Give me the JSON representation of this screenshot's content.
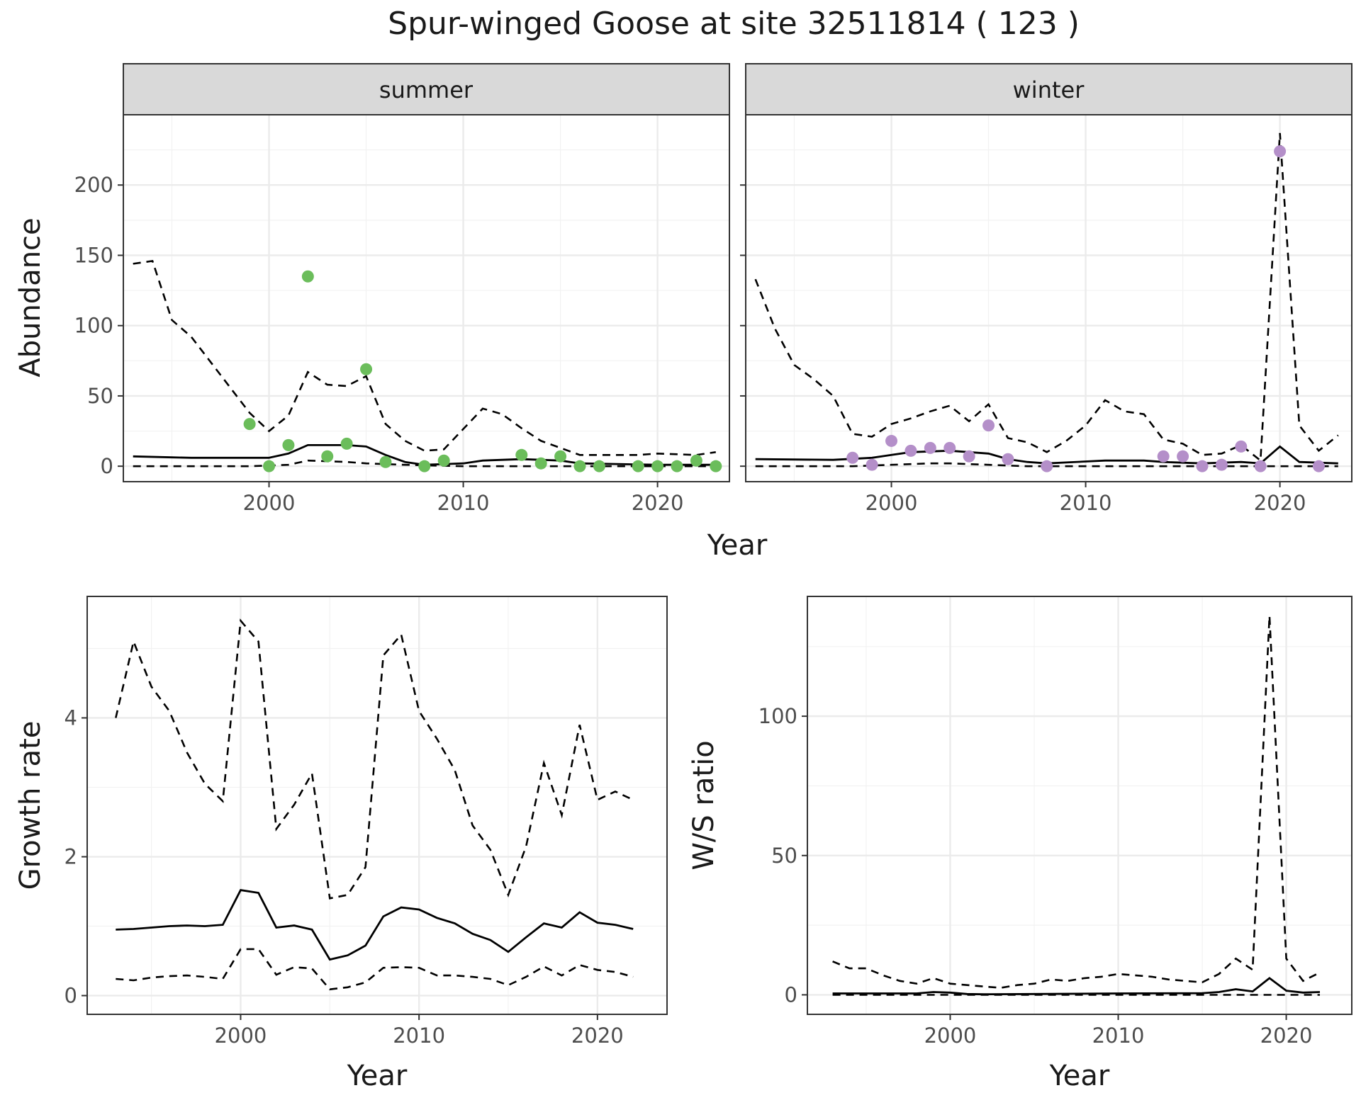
{
  "title": "Spur-winged Goose at site 32511814 ( 123 )",
  "colors": {
    "summer_points": "#6bbd5b",
    "winter_points": "#b48fc9",
    "lines": "#000000",
    "strip_fill": "#d9d9d9",
    "grid": "#ebebeb"
  },
  "chart_data": [
    {
      "type": "line",
      "id": "abundance-summer",
      "strip": "summer",
      "ylabel": "Abundance",
      "xlim": [
        1992.5,
        2023.7
      ],
      "ylim": [
        -11,
        250
      ],
      "xticks": [
        2000,
        2010,
        2020
      ],
      "yticks": [
        0,
        50,
        100,
        150,
        200
      ],
      "points_color": "#6bbd5b",
      "points": [
        [
          1999,
          30
        ],
        [
          2000,
          0
        ],
        [
          2001,
          15
        ],
        [
          2002,
          135
        ],
        [
          2003,
          7
        ],
        [
          2004,
          16
        ],
        [
          2005,
          69
        ],
        [
          2006,
          3
        ],
        [
          2008,
          0
        ],
        [
          2009,
          4
        ],
        [
          2013,
          8
        ],
        [
          2014,
          2
        ],
        [
          2015,
          7
        ],
        [
          2016,
          0
        ],
        [
          2017,
          0
        ],
        [
          2019,
          0
        ],
        [
          2020,
          0
        ],
        [
          2021,
          0
        ],
        [
          2022,
          4
        ],
        [
          2023,
          0
        ]
      ],
      "mean": [
        [
          1993,
          7
        ],
        [
          1995,
          6.3
        ],
        [
          1996,
          6
        ],
        [
          2000,
          6
        ],
        [
          2001,
          9
        ],
        [
          2002,
          15
        ],
        [
          2004,
          15
        ],
        [
          2005,
          14
        ],
        [
          2006,
          8
        ],
        [
          2007,
          3
        ],
        [
          2008,
          1
        ],
        [
          2010,
          2
        ],
        [
          2011,
          4
        ],
        [
          2013,
          5
        ],
        [
          2015,
          4
        ],
        [
          2016,
          2
        ],
        [
          2020,
          1
        ],
        [
          2023,
          1
        ]
      ],
      "upper": [
        [
          1993,
          144
        ],
        [
          1994,
          146
        ],
        [
          1995,
          104
        ],
        [
          1996,
          92
        ],
        [
          1999,
          38
        ],
        [
          2000,
          25
        ],
        [
          2001,
          36
        ],
        [
          2002,
          67
        ],
        [
          2003,
          58
        ],
        [
          2004,
          57
        ],
        [
          2005,
          64
        ],
        [
          2006,
          30
        ],
        [
          2007,
          18
        ],
        [
          2008,
          11
        ],
        [
          2009,
          12
        ],
        [
          2011,
          41
        ],
        [
          2012,
          37
        ],
        [
          2013,
          27
        ],
        [
          2014,
          18
        ],
        [
          2016,
          8
        ],
        [
          2019,
          8
        ],
        [
          2020,
          9
        ],
        [
          2022,
          8
        ],
        [
          2023,
          10
        ]
      ],
      "lower": [
        [
          1993,
          0
        ],
        [
          1999,
          0
        ],
        [
          2001,
          1
        ],
        [
          2002,
          4
        ],
        [
          2004,
          3
        ],
        [
          2005,
          2
        ],
        [
          2007,
          1
        ],
        [
          2010,
          0
        ],
        [
          2023,
          0
        ]
      ]
    },
    {
      "type": "line",
      "id": "abundance-winter",
      "strip": "winter",
      "xlim": [
        1992.5,
        2023.7
      ],
      "ylim": [
        -11,
        250
      ],
      "xticks": [
        2000,
        2010,
        2020
      ],
      "yticks": [
        0,
        50,
        100,
        150,
        200
      ],
      "points_color": "#b48fc9",
      "points": [
        [
          1998,
          6
        ],
        [
          1999,
          1
        ],
        [
          2000,
          18
        ],
        [
          2001,
          11
        ],
        [
          2002,
          13
        ],
        [
          2003,
          13
        ],
        [
          2004,
          7
        ],
        [
          2005,
          29
        ],
        [
          2006,
          5
        ],
        [
          2008,
          0
        ],
        [
          2014,
          7
        ],
        [
          2015,
          7
        ],
        [
          2016,
          0
        ],
        [
          2017,
          1
        ],
        [
          2018,
          14
        ],
        [
          2019,
          0
        ],
        [
          2020,
          224
        ],
        [
          2022,
          0
        ]
      ],
      "mean": [
        [
          1993,
          5
        ],
        [
          1997,
          4.5
        ],
        [
          1999,
          6
        ],
        [
          2000,
          8
        ],
        [
          2001,
          10
        ],
        [
          2003,
          11
        ],
        [
          2005,
          9
        ],
        [
          2006,
          5
        ],
        [
          2007,
          3
        ],
        [
          2008,
          2
        ],
        [
          2011,
          4
        ],
        [
          2013,
          4
        ],
        [
          2014,
          3
        ],
        [
          2016,
          2
        ],
        [
          2018,
          3
        ],
        [
          2019,
          2
        ],
        [
          2020,
          14
        ],
        [
          2021,
          3
        ],
        [
          2023,
          2
        ]
      ],
      "upper": [
        [
          1993,
          133
        ],
        [
          1994,
          98
        ],
        [
          1995,
          72
        ],
        [
          1996,
          62
        ],
        [
          1997,
          50
        ],
        [
          1998,
          23
        ],
        [
          1999,
          21
        ],
        [
          2000,
          30
        ],
        [
          2001,
          34
        ],
        [
          2002,
          39
        ],
        [
          2003,
          43
        ],
        [
          2004,
          32
        ],
        [
          2005,
          44
        ],
        [
          2006,
          20
        ],
        [
          2007,
          17
        ],
        [
          2008,
          10
        ],
        [
          2009,
          18
        ],
        [
          2010,
          29
        ],
        [
          2011,
          47
        ],
        [
          2012,
          39
        ],
        [
          2013,
          37
        ],
        [
          2014,
          19
        ],
        [
          2015,
          16
        ],
        [
          2016,
          8
        ],
        [
          2017,
          9
        ],
        [
          2018,
          15
        ],
        [
          2019,
          4
        ],
        [
          2020,
          237
        ],
        [
          2021,
          29
        ],
        [
          2022,
          11
        ],
        [
          2023,
          22
        ]
      ],
      "lower": [
        [
          1993,
          0
        ],
        [
          1998,
          0
        ],
        [
          2000,
          1
        ],
        [
          2002,
          2
        ],
        [
          2003,
          2
        ],
        [
          2005,
          1
        ],
        [
          2007,
          0
        ],
        [
          2023,
          0
        ]
      ]
    },
    {
      "type": "line",
      "id": "growth-rate",
      "xlabel": "Year",
      "ylabel": "Growth rate",
      "xlim": [
        1991.4,
        2023.9
      ],
      "ylim": [
        -0.27,
        5.75
      ],
      "xticks": [
        2000,
        2010,
        2020
      ],
      "yticks": [
        0,
        2,
        4
      ],
      "mean": [
        [
          1993,
          0.95
        ],
        [
          1994,
          0.96
        ],
        [
          1995,
          0.98
        ],
        [
          1996,
          1.0
        ],
        [
          1997,
          1.01
        ],
        [
          1998,
          1.0
        ],
        [
          1999,
          1.02
        ],
        [
          2000,
          1.52
        ],
        [
          2001,
          1.48
        ],
        [
          2002,
          0.98
        ],
        [
          2003,
          1.01
        ],
        [
          2004,
          0.95
        ],
        [
          2005,
          0.52
        ],
        [
          2006,
          0.58
        ],
        [
          2007,
          0.72
        ],
        [
          2008,
          1.14
        ],
        [
          2009,
          1.27
        ],
        [
          2010,
          1.24
        ],
        [
          2011,
          1.12
        ],
        [
          2012,
          1.04
        ],
        [
          2013,
          0.89
        ],
        [
          2014,
          0.8
        ],
        [
          2015,
          0.63
        ],
        [
          2016,
          0.84
        ],
        [
          2017,
          1.04
        ],
        [
          2018,
          0.98
        ],
        [
          2019,
          1.2
        ],
        [
          2020,
          1.05
        ],
        [
          2021,
          1.02
        ],
        [
          2022,
          0.96
        ]
      ],
      "upper": [
        [
          1993,
          4.0
        ],
        [
          1994,
          5.1
        ],
        [
          1995,
          4.45
        ],
        [
          1996,
          4.1
        ],
        [
          1997,
          3.5
        ],
        [
          1998,
          3.05
        ],
        [
          1999,
          2.8
        ],
        [
          2000,
          5.4
        ],
        [
          2001,
          5.1
        ],
        [
          2002,
          2.4
        ],
        [
          2003,
          2.75
        ],
        [
          2004,
          3.2
        ],
        [
          2005,
          1.4
        ],
        [
          2006,
          1.45
        ],
        [
          2007,
          1.85
        ],
        [
          2008,
          4.9
        ],
        [
          2009,
          5.2
        ],
        [
          2010,
          4.1
        ],
        [
          2011,
          3.7
        ],
        [
          2012,
          3.25
        ],
        [
          2013,
          2.45
        ],
        [
          2014,
          2.1
        ],
        [
          2015,
          1.45
        ],
        [
          2016,
          2.15
        ],
        [
          2017,
          3.35
        ],
        [
          2018,
          2.6
        ],
        [
          2019,
          3.9
        ],
        [
          2020,
          2.82
        ],
        [
          2021,
          2.94
        ],
        [
          2022,
          2.82
        ]
      ],
      "lower": [
        [
          1993,
          0.24
        ],
        [
          1994,
          0.22
        ],
        [
          1995,
          0.26
        ],
        [
          1996,
          0.28
        ],
        [
          1997,
          0.29
        ],
        [
          1998,
          0.27
        ],
        [
          1999,
          0.24
        ],
        [
          2000,
          0.67
        ],
        [
          2001,
          0.67
        ],
        [
          2002,
          0.3
        ],
        [
          2003,
          0.41
        ],
        [
          2004,
          0.39
        ],
        [
          2005,
          0.09
        ],
        [
          2006,
          0.12
        ],
        [
          2007,
          0.19
        ],
        [
          2008,
          0.4
        ],
        [
          2009,
          0.41
        ],
        [
          2010,
          0.4
        ],
        [
          2011,
          0.29
        ],
        [
          2012,
          0.29
        ],
        [
          2013,
          0.27
        ],
        [
          2014,
          0.24
        ],
        [
          2015,
          0.15
        ],
        [
          2016,
          0.27
        ],
        [
          2017,
          0.42
        ],
        [
          2018,
          0.29
        ],
        [
          2019,
          0.44
        ],
        [
          2020,
          0.37
        ],
        [
          2021,
          0.34
        ],
        [
          2022,
          0.27
        ]
      ]
    },
    {
      "type": "line",
      "id": "ws-ratio",
      "xlabel": "Year",
      "ylabel": "W/S ratio",
      "xlim": [
        1991.5,
        2023.9
      ],
      "ylim": [
        -7,
        143
      ],
      "xticks": [
        2000,
        2010,
        2020
      ],
      "yticks": [
        0,
        50,
        100
      ],
      "mean": [
        [
          1993,
          0.5
        ],
        [
          1998,
          0.5
        ],
        [
          1999,
          1
        ],
        [
          2000,
          0.8
        ],
        [
          2001,
          0.3
        ],
        [
          2002,
          0.2
        ],
        [
          2005,
          0.3
        ],
        [
          2010,
          0.5
        ],
        [
          2015,
          0.6
        ],
        [
          2016,
          1
        ],
        [
          2017,
          2
        ],
        [
          2018,
          1.2
        ],
        [
          2019,
          6
        ],
        [
          2020,
          1.5
        ],
        [
          2021,
          0.8
        ],
        [
          2022,
          1
        ]
      ],
      "upper": [
        [
          1993,
          12
        ],
        [
          1994,
          9.5
        ],
        [
          1995,
          9.5
        ],
        [
          1996,
          7
        ],
        [
          1997,
          5
        ],
        [
          1998,
          4
        ],
        [
          1999,
          6
        ],
        [
          2000,
          4
        ],
        [
          2001,
          3.5
        ],
        [
          2002,
          3
        ],
        [
          2003,
          2.5
        ],
        [
          2004,
          3.5
        ],
        [
          2005,
          4
        ],
        [
          2006,
          5.5
        ],
        [
          2007,
          5
        ],
        [
          2008,
          6
        ],
        [
          2009,
          6.5
        ],
        [
          2010,
          7.5
        ],
        [
          2011,
          7
        ],
        [
          2012,
          6.5
        ],
        [
          2013,
          5.5
        ],
        [
          2014,
          5
        ],
        [
          2015,
          4.5
        ],
        [
          2016,
          7.5
        ],
        [
          2017,
          13
        ],
        [
          2018,
          9
        ],
        [
          2019,
          136
        ],
        [
          2020,
          13
        ],
        [
          2021,
          5
        ],
        [
          2022,
          8
        ]
      ],
      "lower": [
        [
          1993,
          0
        ],
        [
          2022,
          0
        ]
      ]
    }
  ]
}
